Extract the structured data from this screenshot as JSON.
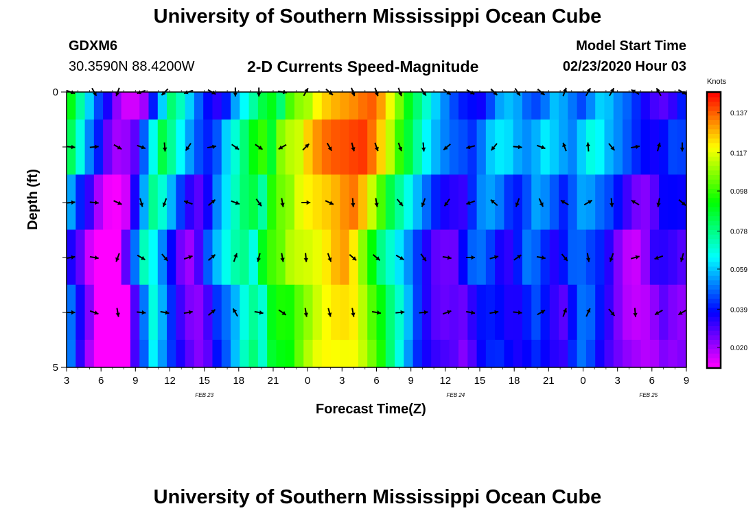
{
  "header": {
    "title": "University of Southern Mississippi Ocean Cube",
    "station_id": "GDXM6",
    "coordinates": "30.3590N 88.4200W",
    "plot_title": "2-D Currents Speed-Magnitude",
    "model_label": "Model Start Time",
    "model_time": "02/23/2020 Hour 03"
  },
  "footer": {
    "title": "University of Southern Mississippi Ocean Cube"
  },
  "chart_data": {
    "type": "heatmap",
    "title": "2-D Currents Speed-Magnitude",
    "xlabel": "Forecast Time(Z)",
    "ylabel": "Depth (ft)",
    "ylim": [
      0,
      5
    ],
    "y_tick_labels": [
      "0",
      "5"
    ],
    "x_tick_labels": [
      "3",
      "6",
      "9",
      "12",
      "15",
      "18",
      "21",
      "0",
      "3",
      "6",
      "9",
      "12",
      "15",
      "18",
      "21",
      "0",
      "3",
      "6",
      "9"
    ],
    "date_labels": [
      {
        "label": "FEB 23",
        "hour_index": 4
      },
      {
        "label": "FEB 24",
        "hour_index": 11.3
      },
      {
        "label": "FEB 25",
        "hour_index": 16.9
      }
    ],
    "time_range_hours": [
      0,
      54
    ],
    "depth_levels": 5,
    "colorbar": {
      "units": "Knots",
      "min": 0.01,
      "max": 0.147,
      "tick_values": [
        0.137,
        0.117,
        0.098,
        0.078,
        0.059,
        0.039,
        0.02
      ],
      "tick_labels": [
        "0.137",
        "0.117",
        "0.098",
        "0.078",
        "0.059",
        "0.039",
        "0.020"
      ]
    },
    "speed_profile": [
      0.09,
      0.075,
      0.06,
      0.045,
      0.035,
      0.022,
      0.015,
      0.015,
      0.02,
      0.04,
      0.06,
      0.08,
      0.072,
      0.06,
      0.048,
      0.038,
      0.033,
      0.04,
      0.055,
      0.065,
      0.075,
      0.085,
      0.09,
      0.08,
      0.1,
      0.107,
      0.11,
      0.12,
      0.125,
      0.128,
      0.13,
      0.132,
      0.135,
      0.137,
      0.13,
      0.118,
      0.105,
      0.09,
      0.08,
      0.07,
      0.06,
      0.052,
      0.045,
      0.04,
      0.038,
      0.036,
      0.045,
      0.055,
      0.058,
      0.055,
      0.048,
      0.045,
      0.05,
      0.058,
      0.055,
      0.05,
      0.045,
      0.052,
      0.06,
      0.058,
      0.052,
      0.048,
      0.042,
      0.035,
      0.03,
      0.028,
      0.032,
      0.04
    ],
    "layer_offsets": [
      0.0,
      0.006,
      -0.004,
      -0.01,
      -0.014
    ],
    "layer_shifts": [
      0,
      1,
      2,
      3,
      2
    ],
    "gap_column": {
      "hour_index": 19.3,
      "layer": 0
    },
    "arrow_rows": [
      [
        110,
        150,
        200,
        250,
        225,
        250,
        120,
        180,
        180,
        100,
        30,
        130,
        160,
        160,
        160,
        145,
        125,
        120,
        135,
        145,
        130,
        20,
        30,
        30,
        300,
        330,
        120
      ],
      [
        95,
        85,
        120,
        110,
        175,
        215,
        80,
        125,
        125,
        240,
        45,
        150,
        165,
        160,
        160,
        175,
        230,
        255,
        220,
        95,
        110,
        340,
        355,
        140,
        80,
        15,
        180
      ],
      [
        85,
        95,
        115,
        165,
        200,
        290,
        50,
        110,
        145,
        170,
        90,
        115,
        175,
        170,
        140,
        200,
        215,
        250,
        310,
        200,
        155,
        300,
        60,
        175,
        300,
        190,
        130
      ],
      [
        80,
        100,
        200,
        120,
        140,
        70,
        50,
        20,
        195,
        170,
        175,
        160,
        130,
        130,
        120,
        145,
        100,
        90,
        75,
        55,
        100,
        140,
        170,
        200,
        75,
        250,
        195
      ],
      [
        90,
        110,
        170,
        95,
        100,
        80,
        50,
        330,
        100,
        125,
        170,
        165,
        170,
        100,
        85,
        85,
        70,
        100,
        80,
        95,
        60,
        20,
        25,
        140,
        175,
        240,
        240
      ]
    ]
  }
}
